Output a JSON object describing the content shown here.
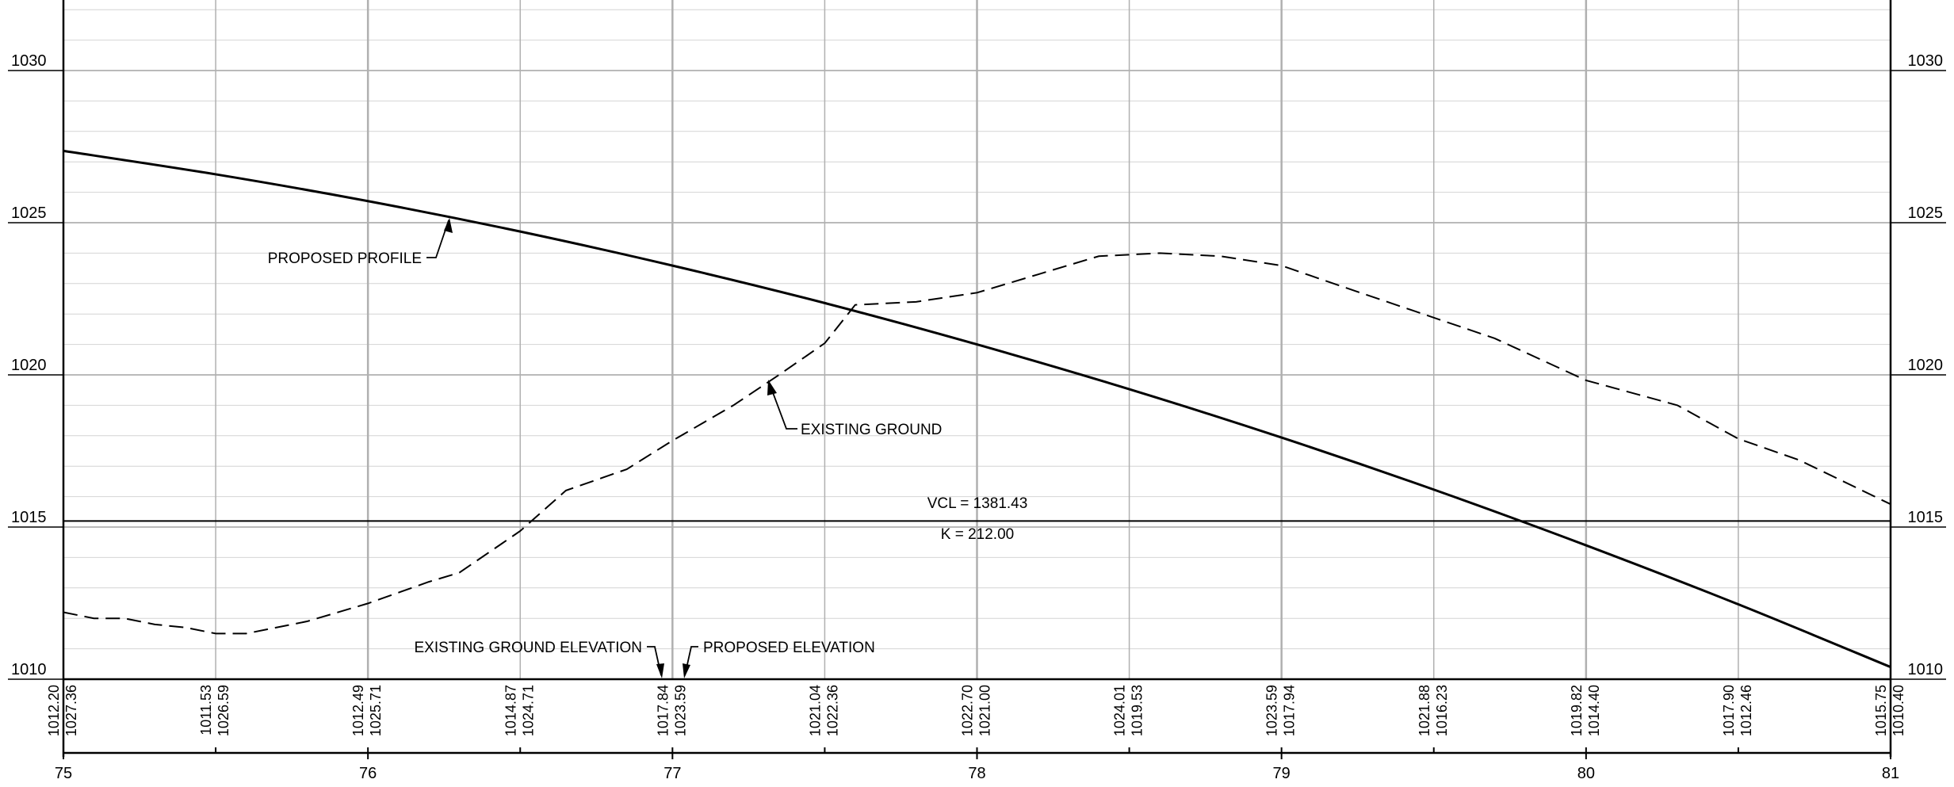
{
  "chart_data": {
    "type": "line",
    "title": "",
    "xlabel": "",
    "ylabel": "",
    "xlim": [
      75,
      81
    ],
    "ylim": [
      1010,
      1032
    ],
    "y_ticks": [
      {
        "value": 1010,
        "label": "1010"
      },
      {
        "value": 1015,
        "label": "1015"
      },
      {
        "value": 1020,
        "label": "1020"
      },
      {
        "value": 1025,
        "label": "1025"
      },
      {
        "value": 1030,
        "label": "1030"
      }
    ],
    "x_ticks": [
      {
        "value": 75,
        "label": "75"
      },
      {
        "value": 76,
        "label": "76"
      },
      {
        "value": 77,
        "label": "77"
      },
      {
        "value": 78,
        "label": "78"
      },
      {
        "value": 79,
        "label": "79"
      },
      {
        "value": 80,
        "label": "80"
      },
      {
        "value": 81,
        "label": "81"
      }
    ],
    "grid": true,
    "proposed_profile": {
      "label": "PROPOSED PROFILE",
      "x": [
        75,
        75.5,
        76,
        76.5,
        77,
        77.5,
        78,
        78.5,
        79,
        79.5,
        80,
        80.5,
        81
      ],
      "y": [
        1027.36,
        1026.59,
        1025.71,
        1024.71,
        1023.59,
        1022.36,
        1021.0,
        1019.53,
        1017.94,
        1016.23,
        1014.4,
        1012.46,
        1010.4
      ]
    },
    "existing_ground": {
      "label": "EXISTING GROUND",
      "x": [
        75,
        75.1,
        75.2,
        75.3,
        75.4,
        75.5,
        75.6,
        75.8,
        76,
        76.2,
        76.3,
        76.5,
        76.65,
        76.85,
        77,
        77.2,
        77.35,
        77.5,
        77.6,
        77.8,
        78,
        78.2,
        78.4,
        78.6,
        78.8,
        79,
        79.2,
        79.5,
        79.7,
        80,
        80.3,
        80.5,
        80.7,
        81
      ],
      "y": [
        1012.2,
        1012.0,
        1012.0,
        1011.8,
        1011.7,
        1011.5,
        1011.5,
        1011.9,
        1012.49,
        1013.2,
        1013.5,
        1014.87,
        1016.2,
        1016.9,
        1017.84,
        1019.0,
        1020.0,
        1021.04,
        1022.3,
        1022.4,
        1022.7,
        1023.3,
        1023.9,
        1024.0,
        1023.9,
        1023.59,
        1022.9,
        1021.88,
        1021.2,
        1019.82,
        1019.0,
        1017.9,
        1017.2,
        1015.75
      ]
    },
    "horizontal_line": {
      "y": 1015.2
    },
    "annotations": [
      {
        "text": "PROPOSED PROFILE"
      },
      {
        "text": "EXISTING GROUND"
      },
      {
        "text": "VCL = 1381.43"
      },
      {
        "text": "K = 212.00"
      },
      {
        "text": "EXISTING GROUND ELEVATION"
      },
      {
        "text": "PROPOSED ELEVATION"
      }
    ],
    "elevation_table": [
      {
        "station": 75.0,
        "existing": "1012.20",
        "proposed": "1027.36"
      },
      {
        "station": 75.5,
        "existing": "1011.53",
        "proposed": "1026.59"
      },
      {
        "station": 76.0,
        "existing": "1012.49",
        "proposed": "1025.71"
      },
      {
        "station": 76.5,
        "existing": "1014.87",
        "proposed": "1024.71"
      },
      {
        "station": 77.0,
        "existing": "1017.84",
        "proposed": "1023.59"
      },
      {
        "station": 77.5,
        "existing": "1021.04",
        "proposed": "1022.36"
      },
      {
        "station": 78.0,
        "existing": "1022.70",
        "proposed": "1021.00"
      },
      {
        "station": 78.5,
        "existing": "1024.01",
        "proposed": "1019.53"
      },
      {
        "station": 79.0,
        "existing": "1023.59",
        "proposed": "1017.94"
      },
      {
        "station": 79.5,
        "existing": "1021.88",
        "proposed": "1016.23"
      },
      {
        "station": 80.0,
        "existing": "1019.82",
        "proposed": "1014.40"
      },
      {
        "station": 80.5,
        "existing": "1017.90",
        "proposed": "1012.46"
      },
      {
        "station": 81.0,
        "existing": "1015.75",
        "proposed": "1010.40"
      }
    ],
    "colors": {
      "line": "#000000",
      "grid_major": "#b0b0b0",
      "grid_minor": "#d4d4d4",
      "existing_text": "#c2c2c2"
    }
  }
}
